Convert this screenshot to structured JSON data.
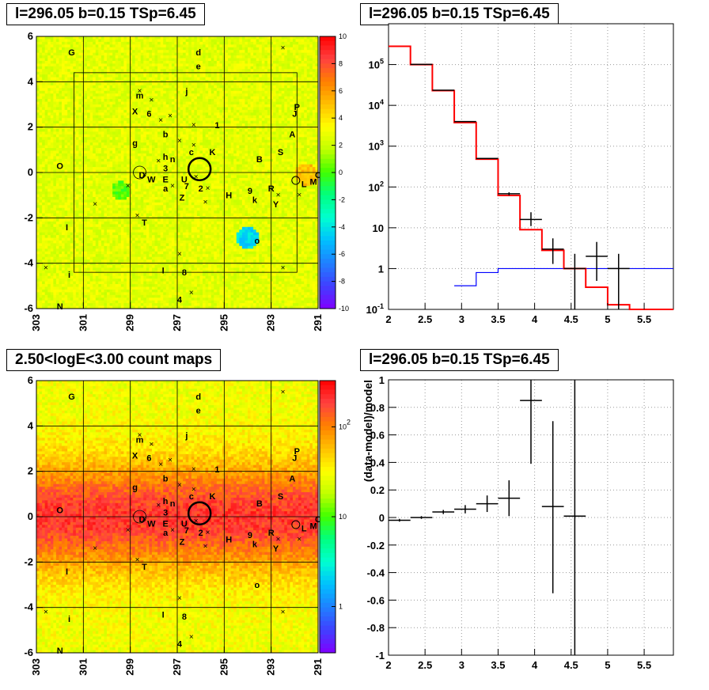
{
  "panels": {
    "tl_title": "l=296.05 b=0.15 TSp=6.45",
    "tr_title": "l=296.05 b=0.15 TSp=6.45",
    "bl_title": "2.50<logE<3.00 count maps",
    "br_title": "l=296.05 b=0.15 TSp=6.45"
  },
  "colors": {
    "data": "#000000",
    "model": "#ff0000",
    "component": "#0000ff",
    "grid": "#999999"
  },
  "chart_data": [
    {
      "type": "heatmap",
      "title": "l=296.05 b=0.15 TSp=6.45",
      "x_ticks": [
        "303",
        "301",
        "299",
        "297",
        "295",
        "293",
        "291"
      ],
      "y_ticks": [
        "-6",
        "-4",
        "-2",
        "0",
        "2",
        "4",
        "6"
      ],
      "xlim": [
        303,
        291
      ],
      "ylim": [
        -6,
        6
      ],
      "colorbar_ticks": [
        "-10",
        "-8",
        "-6",
        "-4",
        "-2",
        "0",
        "2",
        "4",
        "6",
        "8",
        "10"
      ],
      "colorbar_range": [
        -10,
        10
      ],
      "colorbar_colors": [
        "#8000ff",
        "#4040ff",
        "#2080ff",
        "#00c0ff",
        "#00ffd0",
        "#00ff80",
        "#40ff00",
        "#c0ff00",
        "#ffff00",
        "#ffc000",
        "#ff8000",
        "#ff4040",
        "#ff0000"
      ],
      "sources": [
        {
          "label": "G",
          "l": 301.5,
          "b": 5.3
        },
        {
          "label": "d",
          "l": 296.1,
          "b": 5.3
        },
        {
          "label": "e",
          "l": 296.1,
          "b": 4.7
        },
        {
          "label": "j",
          "l": 296.6,
          "b": 3.6
        },
        {
          "label": "m",
          "l": 298.6,
          "b": 3.4
        },
        {
          "label": "X",
          "l": 298.8,
          "b": 2.7
        },
        {
          "label": "6",
          "l": 298.2,
          "b": 2.6
        },
        {
          "label": "1",
          "l": 295.3,
          "b": 2.1
        },
        {
          "label": "P",
          "l": 291.9,
          "b": 2.9
        },
        {
          "label": "J",
          "l": 292.0,
          "b": 2.6
        },
        {
          "label": "A",
          "l": 292.1,
          "b": 1.7
        },
        {
          "label": "b",
          "l": 297.5,
          "b": 1.7
        },
        {
          "label": "g",
          "l": 298.8,
          "b": 1.3
        },
        {
          "label": "S",
          "l": 292.6,
          "b": 0.9
        },
        {
          "label": "h",
          "l": 297.5,
          "b": 0.7
        },
        {
          "label": "n",
          "l": 297.2,
          "b": 0.6
        },
        {
          "label": "c",
          "l": 296.4,
          "b": 0.9
        },
        {
          "label": "K",
          "l": 295.5,
          "b": 0.9
        },
        {
          "label": "B",
          "l": 293.5,
          "b": 0.6
        },
        {
          "label": "O",
          "l": 302.0,
          "b": 0.3
        },
        {
          "label": "3",
          "l": 297.5,
          "b": 0.2
        },
        {
          "label": "D",
          "l": 298.5,
          "b": -0.1
        },
        {
          "label": "W",
          "l": 298.1,
          "b": -0.3
        },
        {
          "label": "E",
          "l": 297.5,
          "b": -0.3
        },
        {
          "label": "U",
          "l": 296.7,
          "b": -0.3
        },
        {
          "label": "7",
          "l": 296.6,
          "b": -0.6
        },
        {
          "label": "2",
          "l": 296.0,
          "b": -0.7
        },
        {
          "label": "a",
          "l": 297.5,
          "b": -0.7
        },
        {
          "label": "Z",
          "l": 296.8,
          "b": -1.1
        },
        {
          "label": "9",
          "l": 293.9,
          "b": -0.8
        },
        {
          "label": "R",
          "l": 293.0,
          "b": -0.7
        },
        {
          "label": "k",
          "l": 293.7,
          "b": -1.2
        },
        {
          "label": "H",
          "l": 294.8,
          "b": -1.0
        },
        {
          "label": "Y",
          "l": 292.8,
          "b": -1.4
        },
        {
          "label": "L",
          "l": 291.6,
          "b": -0.5
        },
        {
          "label": "M",
          "l": 291.2,
          "b": -0.4
        },
        {
          "label": "C",
          "l": 291.0,
          "b": -0.1
        },
        {
          "label": "T",
          "l": 298.4,
          "b": -2.2
        },
        {
          "label": "I",
          "l": 301.7,
          "b": -2.4
        },
        {
          "label": "o",
          "l": 293.6,
          "b": -3.0
        },
        {
          "label": "I",
          "l": 297.6,
          "b": -4.3
        },
        {
          "label": "8",
          "l": 296.7,
          "b": -4.4
        },
        {
          "label": "i",
          "l": 301.6,
          "b": -4.5
        },
        {
          "label": "4",
          "l": 296.9,
          "b": -5.6
        },
        {
          "label": "N",
          "l": 302.0,
          "b": -5.9
        }
      ]
    },
    {
      "type": "line",
      "title": "l=296.05 b=0.15 TSp=6.45",
      "xlim": [
        2,
        5.9
      ],
      "ylim": [
        0.1,
        1000000
      ],
      "y_scale": "log",
      "grid": true,
      "x_ticks": [
        "2",
        "2.5",
        "3",
        "3.5",
        "4",
        "4.5",
        "5",
        "5.5"
      ],
      "y_ticks": [
        "10^-1",
        "1",
        "10",
        "10^2",
        "10^3",
        "10^4",
        "10^5"
      ],
      "bin_edges": [
        2.0,
        2.3,
        2.6,
        2.9,
        3.2,
        3.5,
        3.8,
        4.1,
        4.4,
        4.7,
        5.0,
        5.3,
        5.6,
        5.9
      ],
      "series": [
        {
          "values": [
            280000,
            100000,
            23000,
            3800,
            480,
            62,
            9,
            2.8,
            1.0,
            0.35,
            0.13,
            0.1,
            0.1
          ]
        },
        {
          "values": [
            null,
            null,
            null,
            0.38,
            0.8,
            1.0,
            1.0,
            1.0,
            1.0,
            1.0,
            1.0,
            1.0,
            1.0
          ]
        }
      ],
      "data_points": [
        {
          "x": 2.45,
          "y": 101000,
          "xerr": 0.15
        },
        {
          "x": 2.75,
          "y": 23500,
          "xerr": 0.15
        },
        {
          "x": 3.05,
          "y": 4000,
          "xerr": 0.15
        },
        {
          "x": 3.35,
          "y": 500,
          "xerr": 0.15
        },
        {
          "x": 3.65,
          "y": 68,
          "xerr": 0.15,
          "ylo": 62,
          "yhi": 74
        },
        {
          "x": 3.95,
          "y": 16,
          "xerr": 0.15,
          "ylo": 11,
          "yhi": 24
        },
        {
          "x": 4.25,
          "y": 3,
          "xerr": 0.15,
          "ylo": 1.3,
          "yhi": 5.5
        },
        {
          "x": 4.55,
          "y": 1,
          "xerr": 0.15,
          "ylo": 0.1,
          "yhi": 2.3
        },
        {
          "x": 4.85,
          "y": 2,
          "xerr": 0.15,
          "ylo": 0.5,
          "yhi": 4.5
        },
        {
          "x": 5.15,
          "y": 1,
          "xerr": 0.15,
          "ylo": 0.1,
          "yhi": 2.3
        }
      ]
    },
    {
      "type": "heatmap",
      "title": "2.50<logE<3.00 count maps",
      "x_ticks": [
        "303",
        "301",
        "299",
        "297",
        "295",
        "293",
        "291"
      ],
      "y_ticks": [
        "-6",
        "-4",
        "-2",
        "0",
        "2",
        "4",
        "6"
      ],
      "xlim": [
        303,
        291
      ],
      "ylim": [
        -6,
        6
      ],
      "colorbar_ticks": [
        "1",
        "10",
        "10^2"
      ],
      "colorbar_colors": [
        "#8000ff",
        "#4040ff",
        "#2080ff",
        "#00c0ff",
        "#00ffd0",
        "#00ff80",
        "#40ff00",
        "#c0ff00",
        "#ffff00",
        "#ffc000",
        "#ff8000",
        "#ff4040",
        "#ff0000"
      ],
      "profile": "bright band along b=0, fading to yellow-green at |b|>4"
    },
    {
      "type": "scatter",
      "title": "l=296.05 b=0.15 TSp=6.45",
      "ylabel": "(data-model)/model",
      "xlim": [
        2,
        5.9
      ],
      "ylim": [
        -1,
        1
      ],
      "grid": true,
      "x_ticks": [
        "2",
        "2.5",
        "3",
        "3.5",
        "4",
        "4.5",
        "5",
        "5.5"
      ],
      "y_ticks": [
        "-1",
        "-0.8",
        "-0.6",
        "-0.4",
        "-0.2",
        "0",
        "0.2",
        "0.4",
        "0.6",
        "0.8",
        "1"
      ],
      "points": [
        {
          "x": 2.15,
          "y": -0.02,
          "xerr": 0.15,
          "yerr": 0.01
        },
        {
          "x": 2.45,
          "y": 0.0,
          "xerr": 0.15,
          "yerr": 0.01
        },
        {
          "x": 2.75,
          "y": 0.04,
          "xerr": 0.15,
          "yerr": 0.015
        },
        {
          "x": 3.05,
          "y": 0.06,
          "xerr": 0.15,
          "yerr": 0.03
        },
        {
          "x": 3.35,
          "y": 0.1,
          "xerr": 0.15,
          "yerr": 0.06
        },
        {
          "x": 3.65,
          "y": 0.14,
          "xerr": 0.15,
          "yerr": 0.13
        },
        {
          "x": 3.95,
          "y": 0.85,
          "xerr": 0.15,
          "ylo": 0.39,
          "yhi": 1.0
        },
        {
          "x": 4.25,
          "y": 0.08,
          "xerr": 0.15,
          "ylo": -0.55,
          "yhi": 0.7
        },
        {
          "x": 4.55,
          "y": 0.01,
          "xerr": 0.15,
          "ylo": -1.0,
          "yhi": 1.0
        }
      ]
    }
  ]
}
